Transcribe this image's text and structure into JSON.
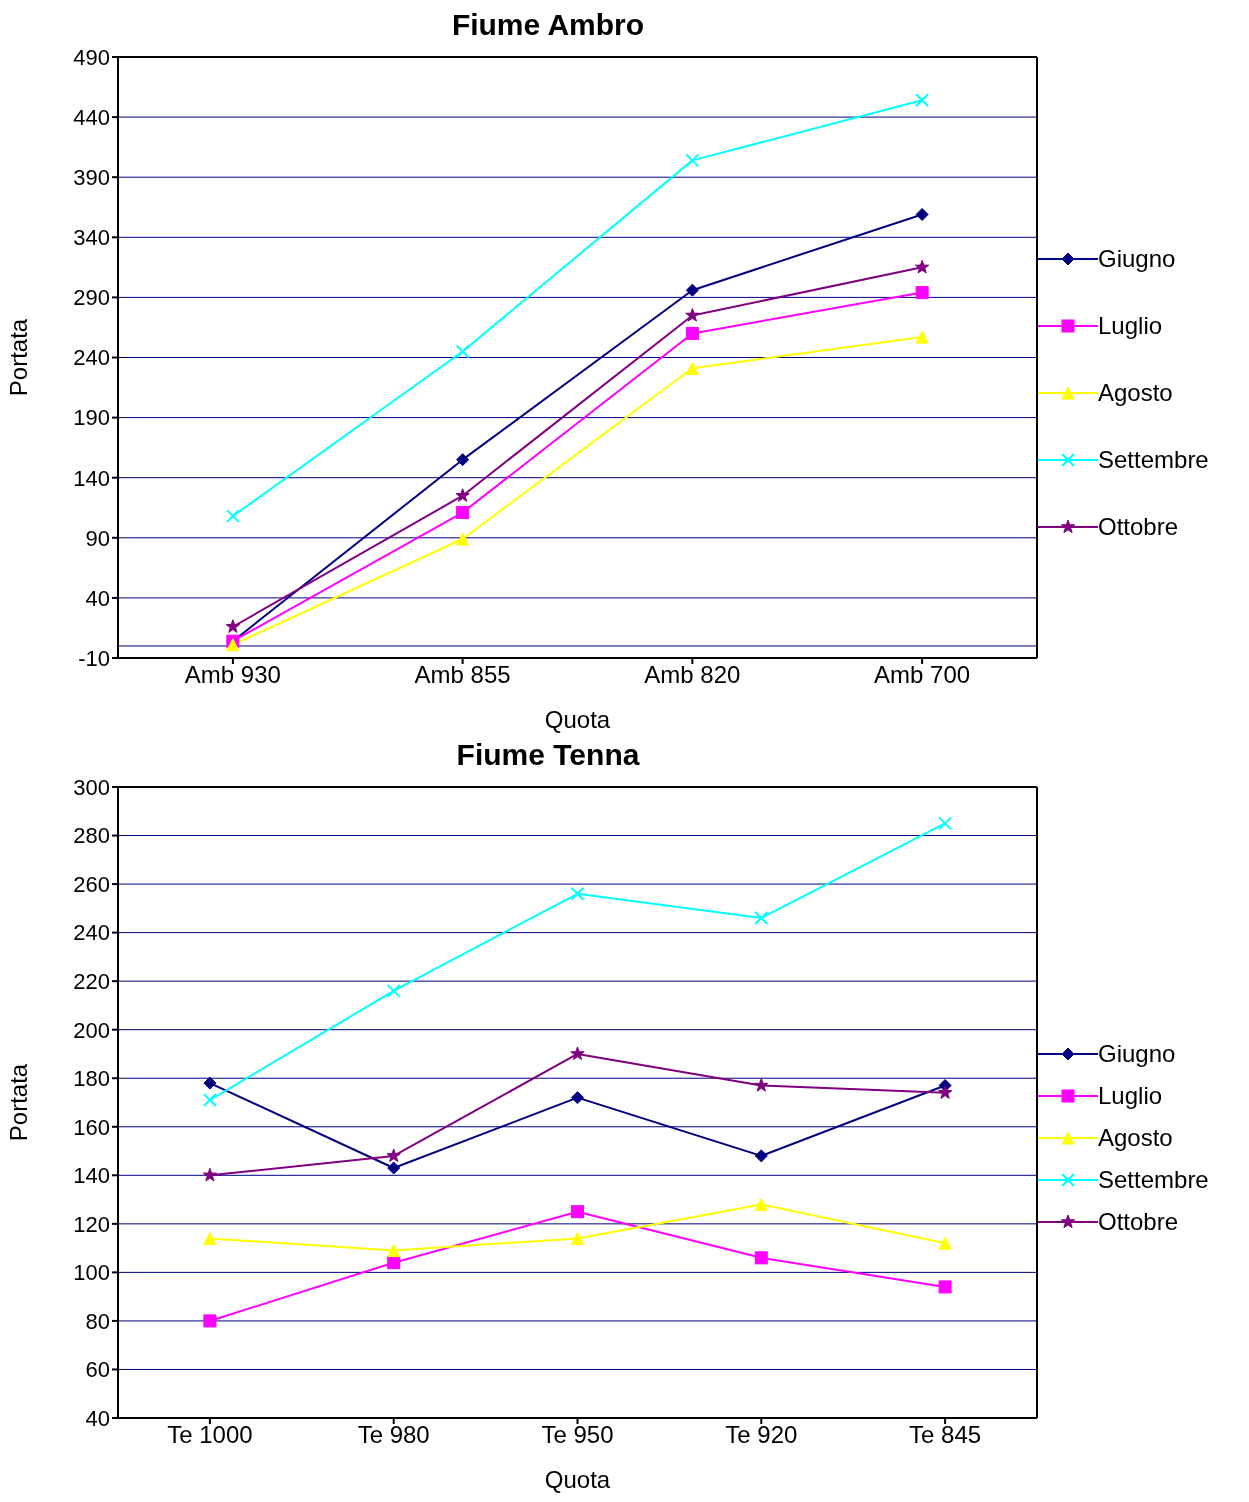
{
  "chart_data": [
    {
      "type": "line",
      "title": "Fiume Ambro",
      "xlabel": "Quota",
      "ylabel": "Portata",
      "categories": [
        "Amb 930",
        "Amb 855",
        "Amb 820",
        "Amb 700"
      ],
      "ylim": [
        -10,
        490
      ],
      "yticks": [
        -10,
        40,
        90,
        140,
        190,
        240,
        290,
        340,
        390,
        440,
        490
      ],
      "grid": "y",
      "legend": "right",
      "ref_lines": [
        {
          "axis": "y",
          "value": 0,
          "color": "#000080"
        }
      ],
      "series": [
        {
          "name": "Giugno",
          "color": "#000080",
          "marker": "diamond",
          "values": [
            4,
            155,
            296,
            359
          ]
        },
        {
          "name": "Luglio",
          "color": "#ff00ff",
          "marker": "square",
          "values": [
            4,
            111,
            260,
            294
          ]
        },
        {
          "name": "Agosto",
          "color": "#ffff00",
          "marker": "triangle",
          "values": [
            1,
            89,
            231,
            257
          ]
        },
        {
          "name": "Settembre",
          "color": "#00ffff",
          "marker": "cross",
          "values": [
            108,
            245,
            404,
            454
          ]
        },
        {
          "name": "Ottobre",
          "color": "#800080",
          "marker": "star",
          "values": [
            16,
            125,
            275,
            315
          ]
        }
      ]
    },
    {
      "type": "line",
      "title": "Fiume Tenna",
      "xlabel": "Quota",
      "ylabel": "Portata",
      "categories": [
        "Te 1000",
        "Te 980",
        "Te 950",
        "Te 920",
        "Te 845"
      ],
      "ylim": [
        40,
        300
      ],
      "yticks": [
        40,
        60,
        80,
        100,
        120,
        140,
        160,
        180,
        200,
        220,
        240,
        260,
        280,
        300
      ],
      "grid": "y",
      "legend": "right",
      "series": [
        {
          "name": "Giugno",
          "color": "#000080",
          "marker": "diamond",
          "values": [
            178,
            143,
            172,
            148,
            177
          ]
        },
        {
          "name": "Luglio",
          "color": "#ff00ff",
          "marker": "square",
          "values": [
            80,
            104,
            125,
            106,
            94
          ]
        },
        {
          "name": "Agosto",
          "color": "#ffff00",
          "marker": "triangle",
          "values": [
            114,
            109,
            114,
            128,
            112
          ]
        },
        {
          "name": "Settembre",
          "color": "#00ffff",
          "marker": "cross",
          "values": [
            171,
            216,
            256,
            246,
            285
          ]
        },
        {
          "name": "Ottobre",
          "color": "#800080",
          "marker": "star",
          "values": [
            140,
            148,
            190,
            177,
            174
          ]
        }
      ]
    }
  ]
}
